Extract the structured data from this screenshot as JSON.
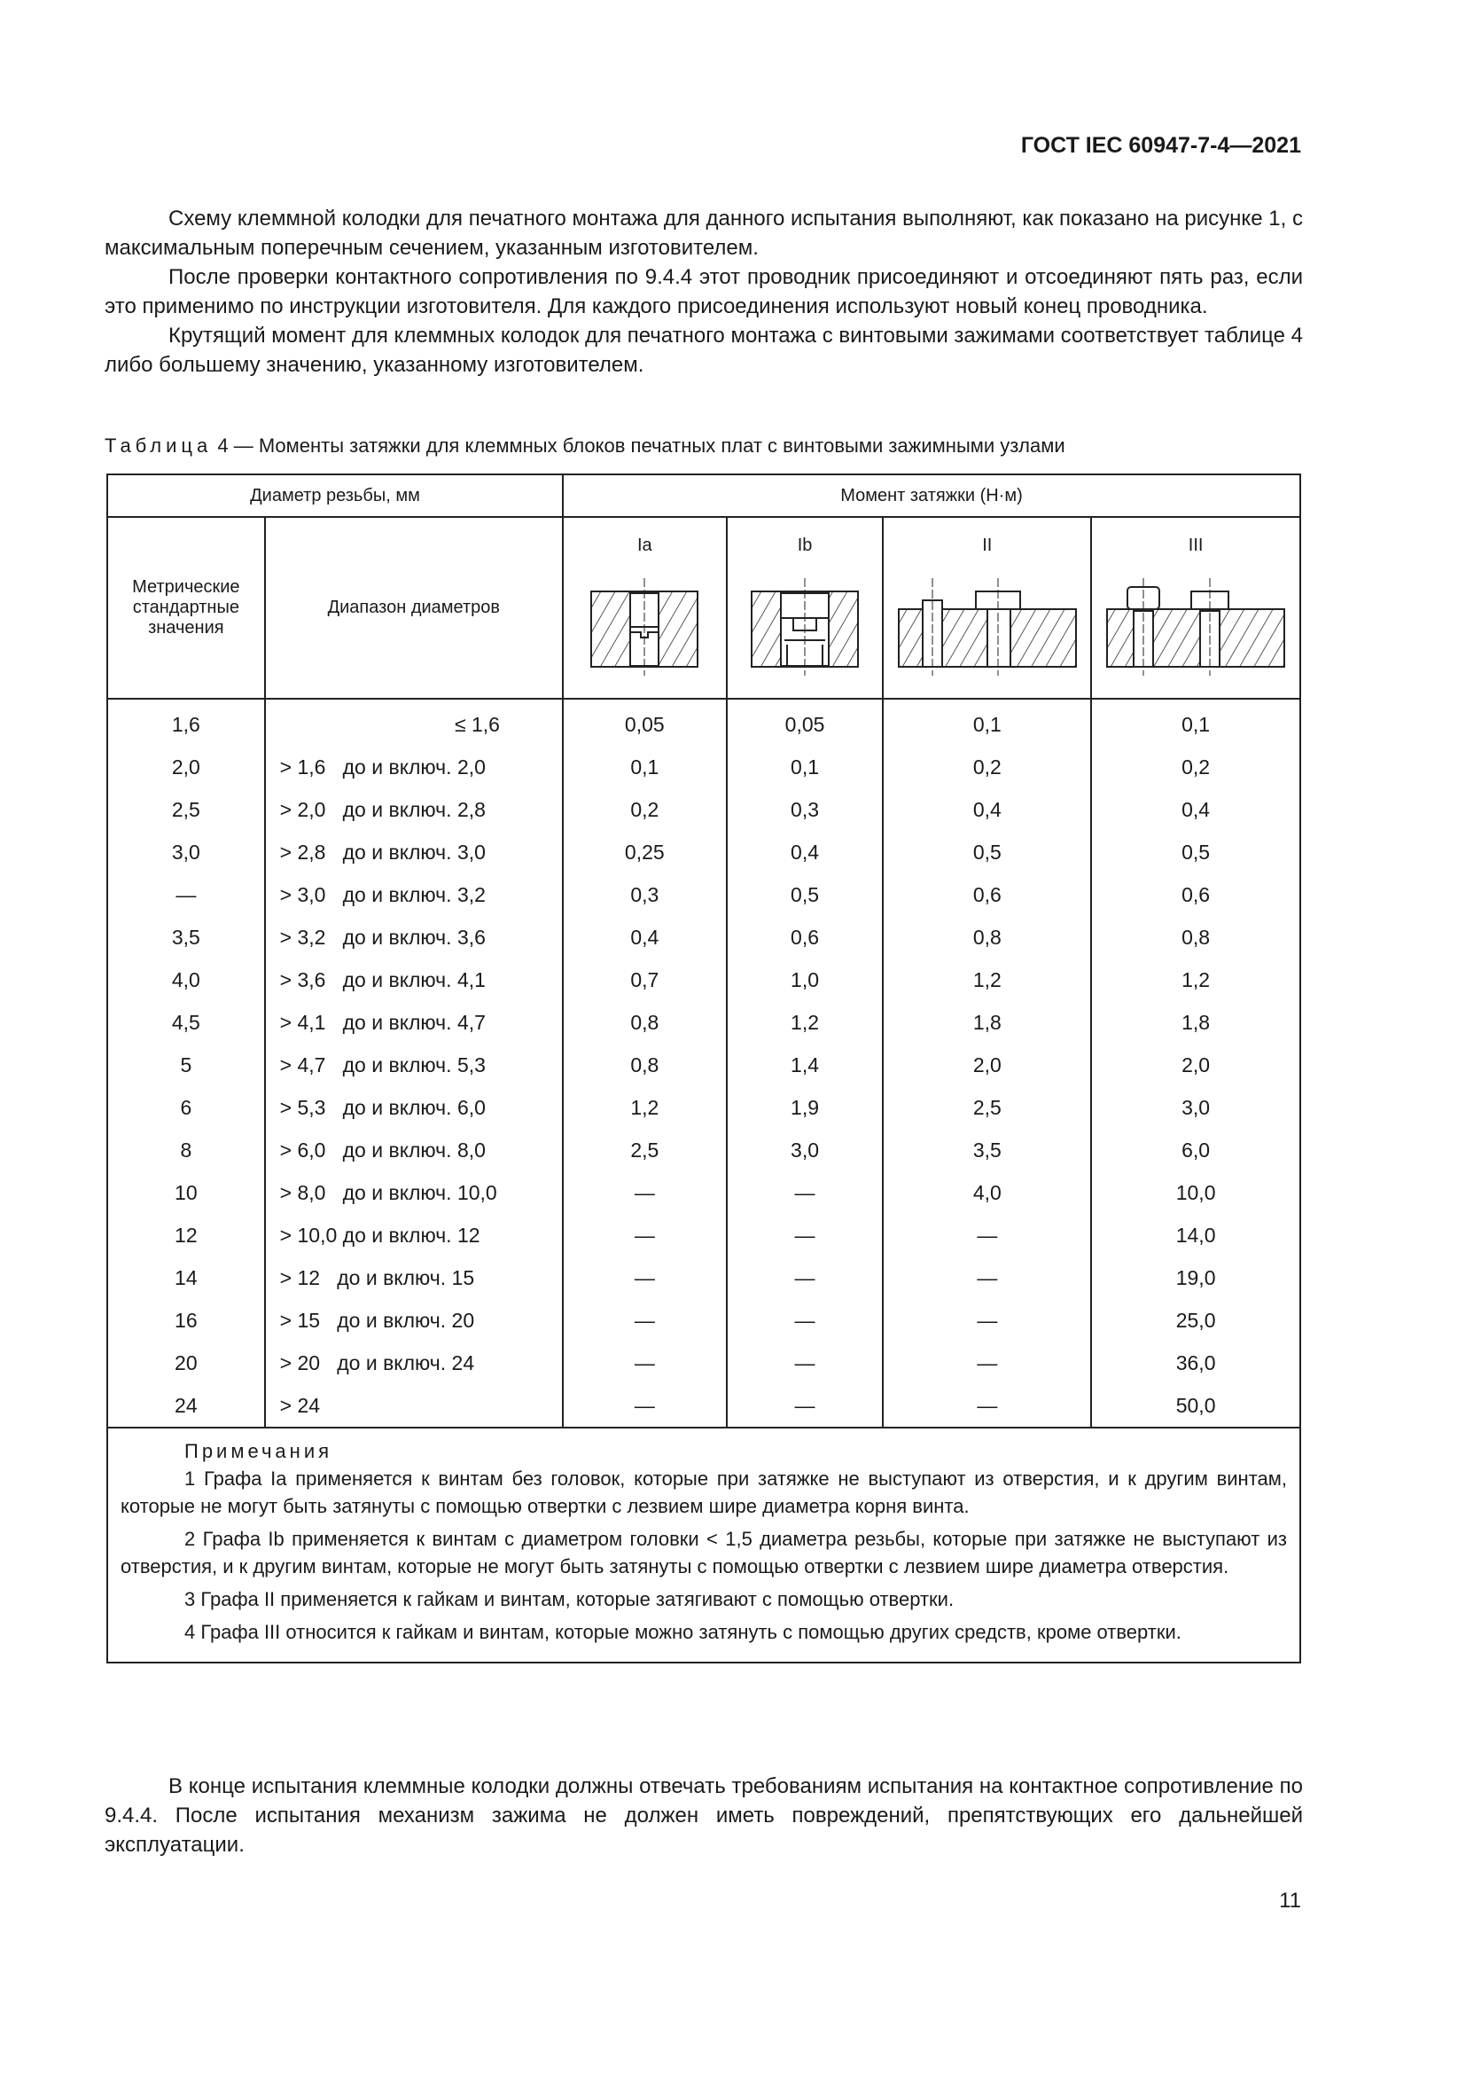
{
  "header": "ГОСТ IEC 60947-7-4—2021",
  "paragraphs": [
    "Схему клеммной колодки для печатного монтажа для данного испытания выполняют, как показано на рисунке 1, с максимальным поперечным сечением, указанным изготовителем.",
    "После проверки контактного сопротивления по 9.4.4 этот проводник присоединяют и отсоединяют пять раз, если это применимо по инструкции изготовителя. Для каждого присоединения используют новый конец проводника.",
    "Крутящий момент для клеммных колодок для печатного монтажа с винтовыми зажимами соответствует таблице 4 либо большему значению, указанному изготовителем."
  ],
  "table": {
    "caption_label": "Таблица",
    "caption_text": "4 — Моменты затяжки для клеммных блоков печатных плат с винтовыми зажимными узлами",
    "head_diameter": "Диаметр резьбы, мм",
    "head_torque": "Момент затяжки (Н·м)",
    "head_metric": "Метрические стандартные значения",
    "head_range": "Диапазон диаметров",
    "cols": [
      "Ia",
      "Ib",
      "II",
      "III"
    ],
    "rows": [
      [
        "1,6",
        "≤ 1,6",
        "0,05",
        "0,05",
        "0,1",
        "0,1"
      ],
      [
        "2,0",
        "> 1,6   до и включ. 2,0",
        "0,1",
        "0,1",
        "0,2",
        "0,2"
      ],
      [
        "2,5",
        "> 2,0   до и включ. 2,8",
        "0,2",
        "0,3",
        "0,4",
        "0,4"
      ],
      [
        "3,0",
        "> 2,8   до и включ. 3,0",
        "0,25",
        "0,4",
        "0,5",
        "0,5"
      ],
      [
        "—",
        "> 3,0   до и включ. 3,2",
        "0,3",
        "0,5",
        "0,6",
        "0,6"
      ],
      [
        "3,5",
        "> 3,2   до и включ. 3,6",
        "0,4",
        "0,6",
        "0,8",
        "0,8"
      ],
      [
        "4,0",
        "> 3,6   до и включ. 4,1",
        "0,7",
        "1,0",
        "1,2",
        "1,2"
      ],
      [
        "4,5",
        "> 4,1   до и включ. 4,7",
        "0,8",
        "1,2",
        "1,8",
        "1,8"
      ],
      [
        "5",
        "> 4,7   до и включ. 5,3",
        "0,8",
        "1,4",
        "2,0",
        "2,0"
      ],
      [
        "6",
        "> 5,3   до и включ. 6,0",
        "1,2",
        "1,9",
        "2,5",
        "3,0"
      ],
      [
        "8",
        "> 6,0   до и включ. 8,0",
        "2,5",
        "3,0",
        "3,5",
        "6,0"
      ],
      [
        "10",
        "> 8,0   до и включ. 10,0",
        "—",
        "—",
        "4,0",
        "10,0"
      ],
      [
        "12",
        "> 10,0 до и включ. 12",
        "—",
        "—",
        "—",
        "14,0"
      ],
      [
        "14",
        "> 12   до и включ. 15",
        "—",
        "—",
        "—",
        "19,0"
      ],
      [
        "16",
        "> 15   до и включ. 20",
        "—",
        "—",
        "—",
        "25,0"
      ],
      [
        "20",
        "> 20   до и включ. 24",
        "—",
        "—",
        "—",
        "36,0"
      ],
      [
        "24",
        "> 24",
        "—",
        "—",
        "—",
        "50,0"
      ]
    ],
    "notes_title": "Примечания",
    "notes": [
      "1 Графа Ia применяется к винтам без головок, которые при затяжке не выступают из отверстия, и к другим винтам, которые не могут быть затянуты с помощью отвертки с лезвием шире диаметра корня винта.",
      "2 Графа Ib применяется к винтам с диаметром головки < 1,5 диаметра резьбы, которые при затяжке не выступают из отверстия, и к другим винтам, которые не могут быть затянуты с помощью отвертки с лезвием шире диаметра отверстия.",
      "3 Графа II применяется к гайкам и винтам, которые затягивают с помощью отвертки.",
      "4 Графа III относится к гайкам и винтам, которые можно затянуть с помощью других средств, кроме отвертки."
    ]
  },
  "closing": "В конце испытания клеммные колодки должны отвечать требованиям испытания на контактное сопротивление по 9.4.4. После испытания механизм зажима не должен иметь повреждений, препятствующих его дальнейшей эксплуатации.",
  "page_number": "11"
}
